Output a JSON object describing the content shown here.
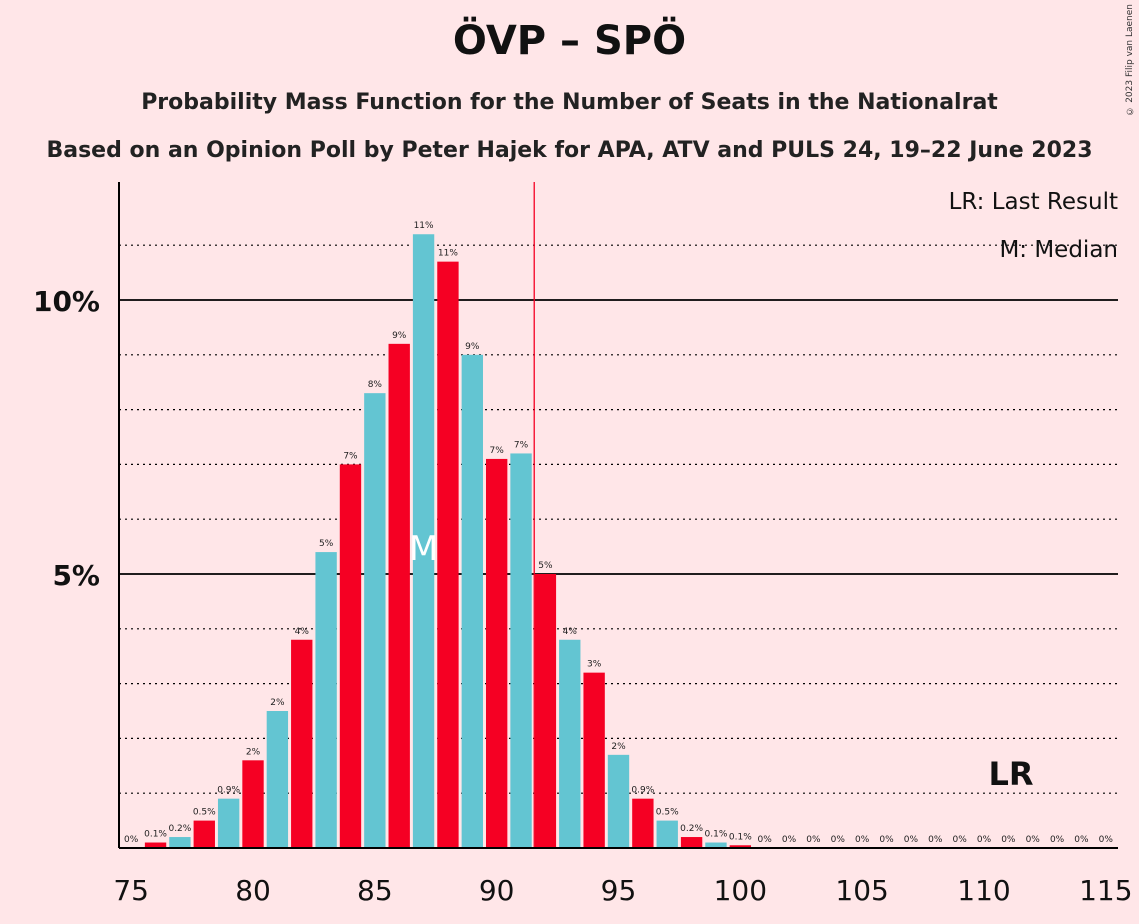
{
  "title": "ÖVP – SPÖ",
  "subtitle": "Probability Mass Function for the Number of Seats in the Nationalrat",
  "subtitle2": "Based on an Opinion Poll by Peter Hajek for APA, ATV and PULS 24, 19–22 June 2023",
  "copyright": "© 2023 Filip van Laenen",
  "legend": {
    "lr": "LR: Last Result",
    "median": "M: Median"
  },
  "markers": {
    "lr_label": "LR",
    "median_label": "M"
  },
  "colors": {
    "background": "#FFE6E8",
    "bar_odd": "#63C5D2",
    "bar_even": "#F50023",
    "lr_line": "#F50023"
  },
  "chart_data": {
    "type": "bar",
    "xlabel": "",
    "ylabel": "",
    "ylim": [
      0,
      12
    ],
    "x_ticks": [
      75,
      80,
      85,
      90,
      95,
      100,
      105,
      110,
      115
    ],
    "y_ticks": [
      {
        "value": 5,
        "label": "5%"
      },
      {
        "value": 10,
        "label": "10%"
      }
    ],
    "median": 87,
    "last_result": 92,
    "seats": [
      75,
      76,
      77,
      78,
      79,
      80,
      81,
      82,
      83,
      84,
      85,
      86,
      87,
      88,
      89,
      90,
      91,
      92,
      93,
      94,
      95,
      96,
      97,
      98,
      99,
      100,
      101,
      102,
      103,
      104,
      105,
      106,
      107,
      108,
      109,
      110,
      111,
      112,
      113,
      114,
      115
    ],
    "values": [
      0,
      0.1,
      0.2,
      0.5,
      0.9,
      1.6,
      2.5,
      3.8,
      5.4,
      7.0,
      8.3,
      9.2,
      11.2,
      10.7,
      9.0,
      7.1,
      7.2,
      5.0,
      3.8,
      3.2,
      1.7,
      0.9,
      0.5,
      0.2,
      0.1,
      0.05,
      0,
      0,
      0,
      0,
      0,
      0,
      0,
      0,
      0,
      0,
      0,
      0,
      0,
      0,
      0
    ],
    "labels": [
      "0%",
      "0.1%",
      "0.2%",
      "0.5%",
      "0.9%",
      "2%",
      "2%",
      "4%",
      "5%",
      "7%",
      "8%",
      "9%",
      "11%",
      "11%",
      "9%",
      "7%",
      "7%",
      "5%",
      "4%",
      "3%",
      "2%",
      "0.9%",
      "0.5%",
      "0.2%",
      "0.1%",
      "0.1%",
      "0%",
      "0%",
      "0%",
      "0%",
      "0%",
      "0%",
      "0%",
      "0%",
      "0%",
      "0%",
      "0%",
      "0%",
      "0%",
      "0%",
      "0%"
    ]
  }
}
